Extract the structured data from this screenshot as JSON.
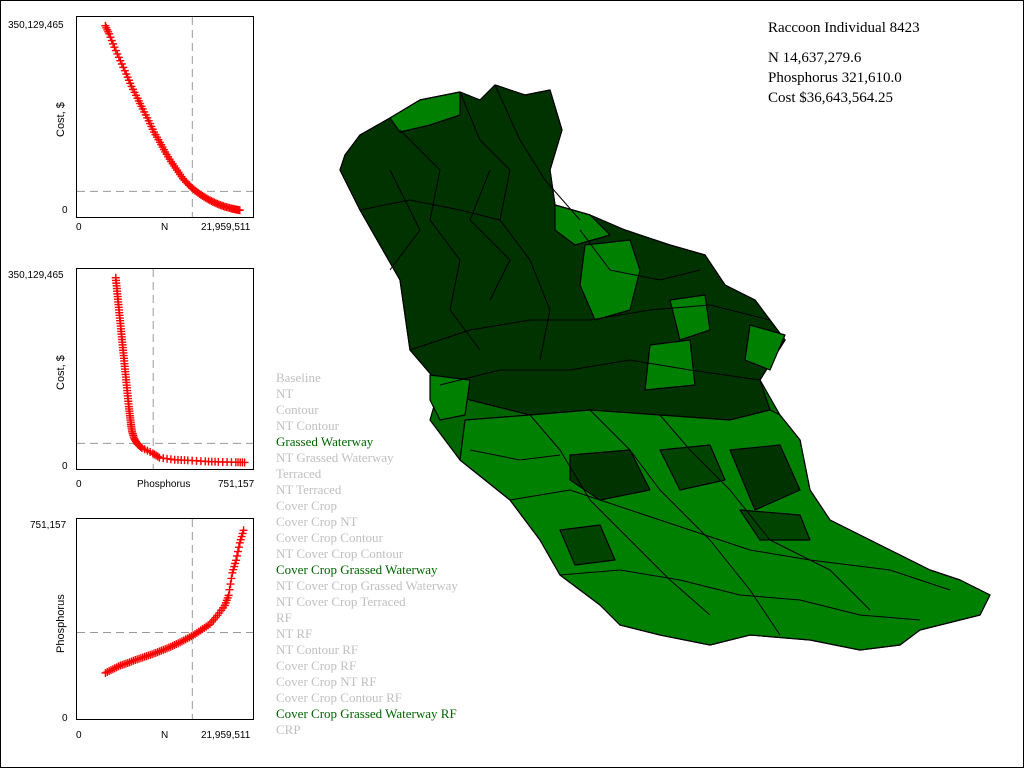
{
  "info": {
    "title": "Raccoon Individual 8423",
    "n_line": "N 14,637,279.6",
    "phosphorus_line": "Phosphorus 321,610.0",
    "cost_line": "Cost $36,643,564.25"
  },
  "legend": {
    "items": [
      {
        "label": "Baseline",
        "active": false
      },
      {
        "label": "NT",
        "active": false
      },
      {
        "label": "Contour",
        "active": false
      },
      {
        "label": "NT Contour",
        "active": false
      },
      {
        "label": "Grassed Waterway",
        "active": true
      },
      {
        "label": "NT Grassed Waterway",
        "active": false
      },
      {
        "label": "Terraced",
        "active": false
      },
      {
        "label": "NT Terraced",
        "active": false
      },
      {
        "label": "Cover Crop",
        "active": false
      },
      {
        "label": "Cover Crop NT",
        "active": false
      },
      {
        "label": "Cover Crop Contour",
        "active": false
      },
      {
        "label": "NT Cover Crop Contour",
        "active": false
      },
      {
        "label": "Cover Crop Grassed Waterway",
        "active": true
      },
      {
        "label": "NT Cover Crop Grassed Waterway",
        "active": false
      },
      {
        "label": "NT Cover Crop Terraced",
        "active": false
      },
      {
        "label": "RF",
        "active": false
      },
      {
        "label": "NT RF",
        "active": false
      },
      {
        "label": "NT Contour RF",
        "active": false
      },
      {
        "label": "Cover Crop RF",
        "active": false
      },
      {
        "label": "Cover Crop NT RF",
        "active": false
      },
      {
        "label": "Cover Crop Contour RF",
        "active": false
      },
      {
        "label": "Cover Crop Grassed Waterway RF",
        "active": true
      },
      {
        "label": "CRP",
        "active": false
      }
    ],
    "active_color": "#006400",
    "inactive_color": "#c0c0c0"
  },
  "colors": {
    "marker": "#ff0000",
    "dark_green": "#003300",
    "mid_green": "#006600",
    "green": "#008000",
    "light_green": "#00a000"
  },
  "chart_data": [
    {
      "type": "scatter",
      "xlabel": "N",
      "ylabel": "Cost, $",
      "x_tick_labels": [
        "0",
        "21,959,511"
      ],
      "y_tick_labels": [
        "0",
        "350,129,465"
      ],
      "xlim": [
        0,
        21959511
      ],
      "ylim": [
        0,
        350129465
      ],
      "marker": "+",
      "x": [
        3000000,
        3500000,
        4200000,
        5000000,
        5800000,
        6500000,
        7300000,
        8000000,
        8800000,
        9500000,
        10300000,
        11000000,
        11800000,
        12600000,
        13400000,
        14200000,
        15000000,
        15800000,
        16600000,
        17400000,
        18200000,
        19000000,
        19800000,
        20400000,
        21000000
      ],
      "y": [
        345000000,
        330000000,
        305000000,
        280000000,
        255000000,
        232000000,
        210000000,
        190000000,
        168000000,
        147000000,
        128000000,
        110000000,
        92000000,
        76000000,
        60000000,
        48000000,
        38000000,
        30000000,
        23000000,
        17000000,
        12000000,
        8000000,
        5000000,
        3000000,
        1500000
      ],
      "reference_x": 14637279.6,
      "reference_y": 36643564.25
    },
    {
      "type": "scatter",
      "xlabel": "Phosphorus",
      "ylabel": "Cost, $",
      "x_tick_labels": [
        "0",
        "751,157"
      ],
      "y_tick_labels": [
        "0",
        "350,129,465"
      ],
      "xlim": [
        0,
        751157
      ],
      "ylim": [
        0,
        350129465
      ],
      "marker": "+",
      "x": [
        150000,
        155000,
        160000,
        165000,
        170000,
        175000,
        180000,
        185000,
        190000,
        195000,
        200000,
        205000,
        210000,
        215000,
        220000,
        225000,
        235000,
        250000,
        270000,
        320000,
        350000,
        420000,
        480000,
        560000,
        620000,
        700000,
        740000
      ],
      "y": [
        345000000,
        325000000,
        305000000,
        285000000,
        265000000,
        245000000,
        225000000,
        205000000,
        185000000,
        165000000,
        145000000,
        125000000,
        105000000,
        88000000,
        72000000,
        58000000,
        45000000,
        35000000,
        28000000,
        18000000,
        10000000,
        6000000,
        5000000,
        3000000,
        2000000,
        1500000,
        1000000
      ],
      "reference_x": 321610.0,
      "reference_y": 36643564.25
    },
    {
      "type": "scatter",
      "xlabel": "N",
      "ylabel": "Phosphorus",
      "x_tick_labels": [
        "0",
        "21,959,511"
      ],
      "y_tick_labels": [
        "0",
        "751,157"
      ],
      "xlim": [
        0,
        21959511
      ],
      "ylim": [
        0,
        751157
      ],
      "marker": "+",
      "x": [
        3000000,
        4000000,
        5000000,
        6000000,
        7000000,
        8000000,
        9000000,
        10000000,
        11000000,
        12000000,
        13000000,
        14000000,
        15000000,
        16000000,
        17000000,
        18000000,
        19000000,
        19500000,
        20000000,
        20500000,
        21000000,
        21500000
      ],
      "y": [
        160000,
        175000,
        190000,
        200000,
        212000,
        222000,
        232000,
        243000,
        255000,
        268000,
        282000,
        298000,
        315000,
        335000,
        355000,
        390000,
        430000,
        470000,
        560000,
        610000,
        680000,
        730000
      ],
      "reference_x": 14637279.6,
      "reference_y": 321610.0
    }
  ]
}
